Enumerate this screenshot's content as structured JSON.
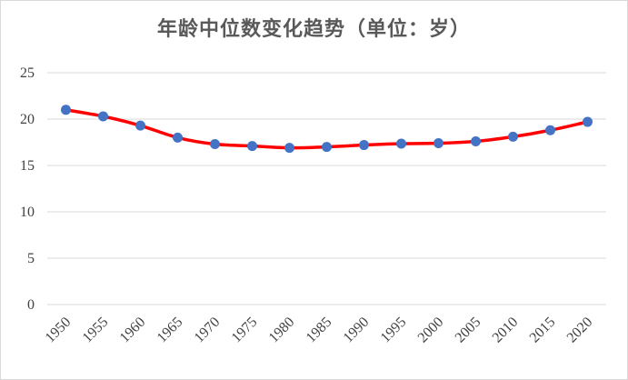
{
  "chart_data": {
    "type": "line",
    "title": "年龄中位数变化趋势（单位：岁）",
    "xlabel": "",
    "ylabel": "",
    "categories": [
      "1950",
      "1955",
      "1960",
      "1965",
      "1970",
      "1975",
      "1980",
      "1985",
      "1990",
      "1995",
      "2000",
      "2005",
      "2010",
      "2015",
      "2020"
    ],
    "series": [
      {
        "values": [
          21.0,
          20.3,
          19.3,
          18.0,
          17.3,
          17.1,
          16.9,
          17.0,
          17.2,
          17.35,
          17.4,
          17.6,
          18.1,
          18.8,
          19.7
        ]
      }
    ],
    "ylim": [
      0,
      25
    ],
    "yticks": [
      "0",
      "5",
      "10",
      "15",
      "20",
      "25"
    ],
    "grid": true,
    "colors": {
      "line": "#ff0000",
      "marker": "#4472c4",
      "grid": "#d9d9d9"
    }
  }
}
